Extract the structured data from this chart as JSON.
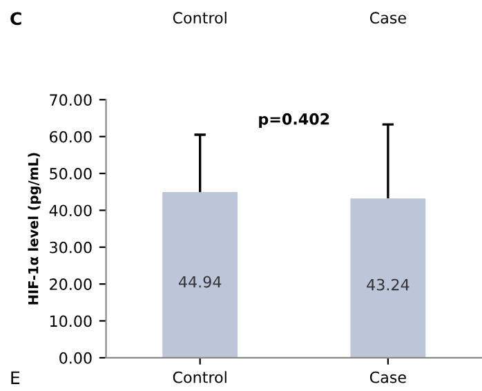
{
  "chart_data": {
    "type": "bar",
    "ylabel": "HIF-1α level (pg/mL)",
    "categories": [
      "Control",
      "Case"
    ],
    "values": [
      44.94,
      43.24
    ],
    "color": "#bcc6d8",
    "errors": [
      [
        44.94,
        60.5
      ],
      [
        43.24,
        63.3
      ]
    ],
    "data_labels": true,
    "ylim": [
      0,
      70
    ],
    "yticks": [
      {
        "value": 0,
        "label": "0.00"
      },
      {
        "value": 10,
        "label": "10.00"
      },
      {
        "value": 20,
        "label": "20.00"
      },
      {
        "value": 30,
        "label": "30.00"
      },
      {
        "value": 40,
        "label": "40.00"
      },
      {
        "value": 50,
        "label": "50.00"
      },
      {
        "value": 60,
        "label": "60.00"
      },
      {
        "value": 70,
        "label": "70.00"
      }
    ],
    "annotations": [
      "C",
      "Control",
      "Case",
      "p=0.402",
      "E"
    ],
    "grid": false
  }
}
